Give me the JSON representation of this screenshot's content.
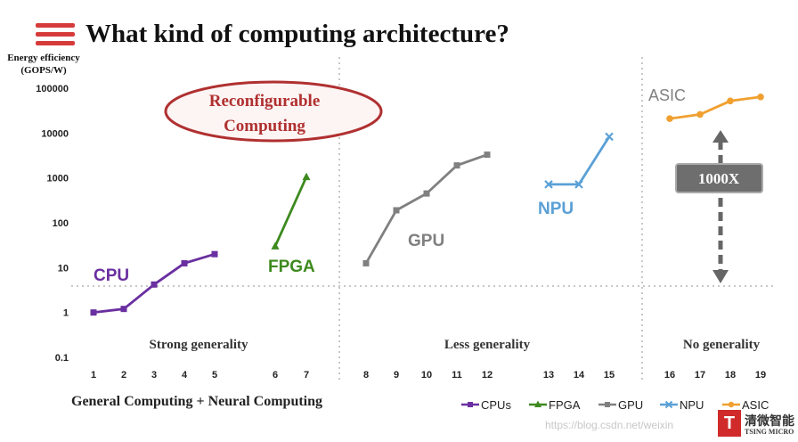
{
  "header": {
    "title": "What kind of computing architecture?",
    "menu_icon": "hamburger-menu-icon"
  },
  "chart_data": {
    "type": "line",
    "ylabel": "Energy efficiency (GOPS/W)",
    "yscale": "log",
    "ylim": [
      0.1,
      100000
    ],
    "y_ticks": [
      "100000",
      "10000",
      "1000",
      "100",
      "10",
      "1",
      "0.1"
    ],
    "x_ticks": [
      1,
      2,
      3,
      4,
      5,
      6,
      7,
      8,
      9,
      10,
      11,
      12,
      13,
      14,
      15,
      16,
      17,
      18,
      19
    ],
    "grid": false,
    "legend_position": "bottom-right",
    "series": [
      {
        "name": "CPUs",
        "label": "CPU",
        "color": "#6a2fa0",
        "marker": "square",
        "x": [
          1,
          2,
          3,
          4,
          5
        ],
        "y": [
          1,
          1.2,
          4.2,
          12.5,
          20
        ]
      },
      {
        "name": "FPGA",
        "label": "FPGA",
        "color": "#3d8a1e",
        "marker": "triangle",
        "x": [
          6,
          7
        ],
        "y": [
          30,
          1050
        ]
      },
      {
        "name": "GPU",
        "label": "GPU",
        "color": "#808080",
        "marker": "square",
        "x": [
          8,
          9,
          10,
          11,
          12
        ],
        "y": [
          12.5,
          190,
          450,
          1900,
          3300
        ]
      },
      {
        "name": "NPU",
        "label": "NPU",
        "color": "#5aa0d6",
        "marker": "x",
        "x": [
          13,
          14,
          15
        ],
        "y": [
          720,
          720,
          8300
        ]
      },
      {
        "name": "ASIC",
        "label": "ASIC",
        "color": "#f0a030",
        "marker": "circle",
        "x": [
          16,
          17,
          18,
          19
        ],
        "y": [
          21000,
          26000,
          52000,
          64000
        ]
      }
    ],
    "section_labels": [
      "Strong generality",
      "Less generality",
      "No generality"
    ],
    "annotations": {
      "oval": [
        "Reconfigurable",
        "Computing"
      ],
      "gap_label": "1000X"
    }
  },
  "footer": {
    "caption": "General Computing + Neural Computing"
  },
  "watermark": "https://blog.csdn.net/weixin",
  "logo": {
    "mark": "T",
    "cn": "清微智能",
    "en": "TSING MICRO"
  }
}
